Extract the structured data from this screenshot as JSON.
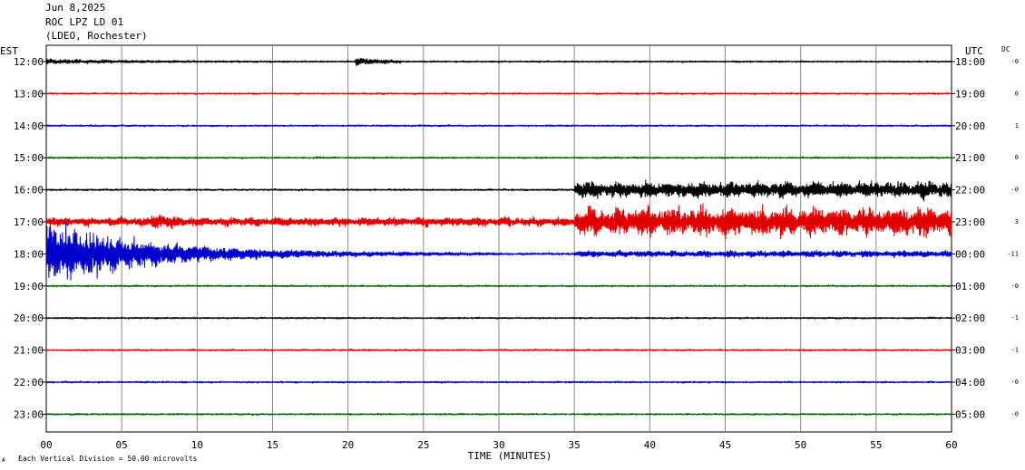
{
  "header": {
    "date": "Jun 8,2025",
    "station": "ROC LPZ LD 01",
    "network": "(LDEO, Rochester)"
  },
  "chart_data": {
    "type": "line",
    "title": "",
    "left_axis_label": "EST",
    "right_axis_label": "UTC",
    "dc_label": "DC",
    "xlabel": "TIME (MINUTES)",
    "xlim": [
      0,
      60
    ],
    "x_ticks": [
      "00",
      "05",
      "10",
      "15",
      "20",
      "25",
      "30",
      "35",
      "40",
      "45",
      "50",
      "55",
      "60"
    ],
    "scale_note": "Each Vertical Division =   50.00 microvolts",
    "corner_mark": "A",
    "grid": true,
    "colors": [
      "#000000",
      "#e00000",
      "#0000cc",
      "#006400"
    ],
    "traces": [
      {
        "est": "12:00",
        "utc": "18:00",
        "dc": "-0",
        "color": "#000000",
        "base": 0.9,
        "events": [
          {
            "start": 0,
            "end": 13,
            "amp": 2.4,
            "decay": 5
          },
          {
            "start": 20.5,
            "end": 23.5,
            "amp": 4.5,
            "decay": 2
          }
        ]
      },
      {
        "est": "13:00",
        "utc": "19:00",
        "dc": "0",
        "color": "#e00000",
        "base": 0.9,
        "events": []
      },
      {
        "est": "14:00",
        "utc": "20:00",
        "dc": "1",
        "color": "#0000cc",
        "base": 0.9,
        "events": []
      },
      {
        "est": "15:00",
        "utc": "21:00",
        "dc": "0",
        "color": "#006400",
        "base": 0.9,
        "events": []
      },
      {
        "est": "16:00",
        "utc": "22:00",
        "dc": "-0",
        "color": "#000000",
        "base": 1.0,
        "events": [
          {
            "start": 35,
            "end": 60,
            "amp": 10,
            "decay": 0
          }
        ]
      },
      {
        "est": "17:00",
        "utc": "23:00",
        "dc": "3",
        "color": "#e00000",
        "base": 1.2,
        "events": [
          {
            "start": 0,
            "end": 35,
            "amp": 4.5,
            "decay": 0
          },
          {
            "start": 7,
            "end": 9,
            "amp": 7,
            "decay": 1
          },
          {
            "start": 35,
            "end": 60,
            "amp": 19,
            "decay": 0
          }
        ]
      },
      {
        "est": "18:00",
        "utc": "00:00",
        "dc": "-11",
        "color": "#0000cc",
        "base": 1.2,
        "events": [
          {
            "start": 0,
            "end": 30,
            "amp": 40,
            "decay": 7
          },
          {
            "start": 35,
            "end": 60,
            "amp": 3,
            "decay": 0
          }
        ]
      },
      {
        "est": "19:00",
        "utc": "01:00",
        "dc": "-0",
        "color": "#006400",
        "base": 0.9,
        "events": []
      },
      {
        "est": "20:00",
        "utc": "02:00",
        "dc": "-1",
        "color": "#000000",
        "base": 0.9,
        "events": []
      },
      {
        "est": "21:00",
        "utc": "03:00",
        "dc": "-1",
        "color": "#e00000",
        "base": 0.9,
        "events": []
      },
      {
        "est": "22:00",
        "utc": "04:00",
        "dc": "-0",
        "color": "#0000cc",
        "base": 0.9,
        "events": []
      },
      {
        "est": "23:00",
        "utc": "05:00",
        "dc": "-0",
        "color": "#006400",
        "base": 0.9,
        "events": []
      }
    ]
  }
}
